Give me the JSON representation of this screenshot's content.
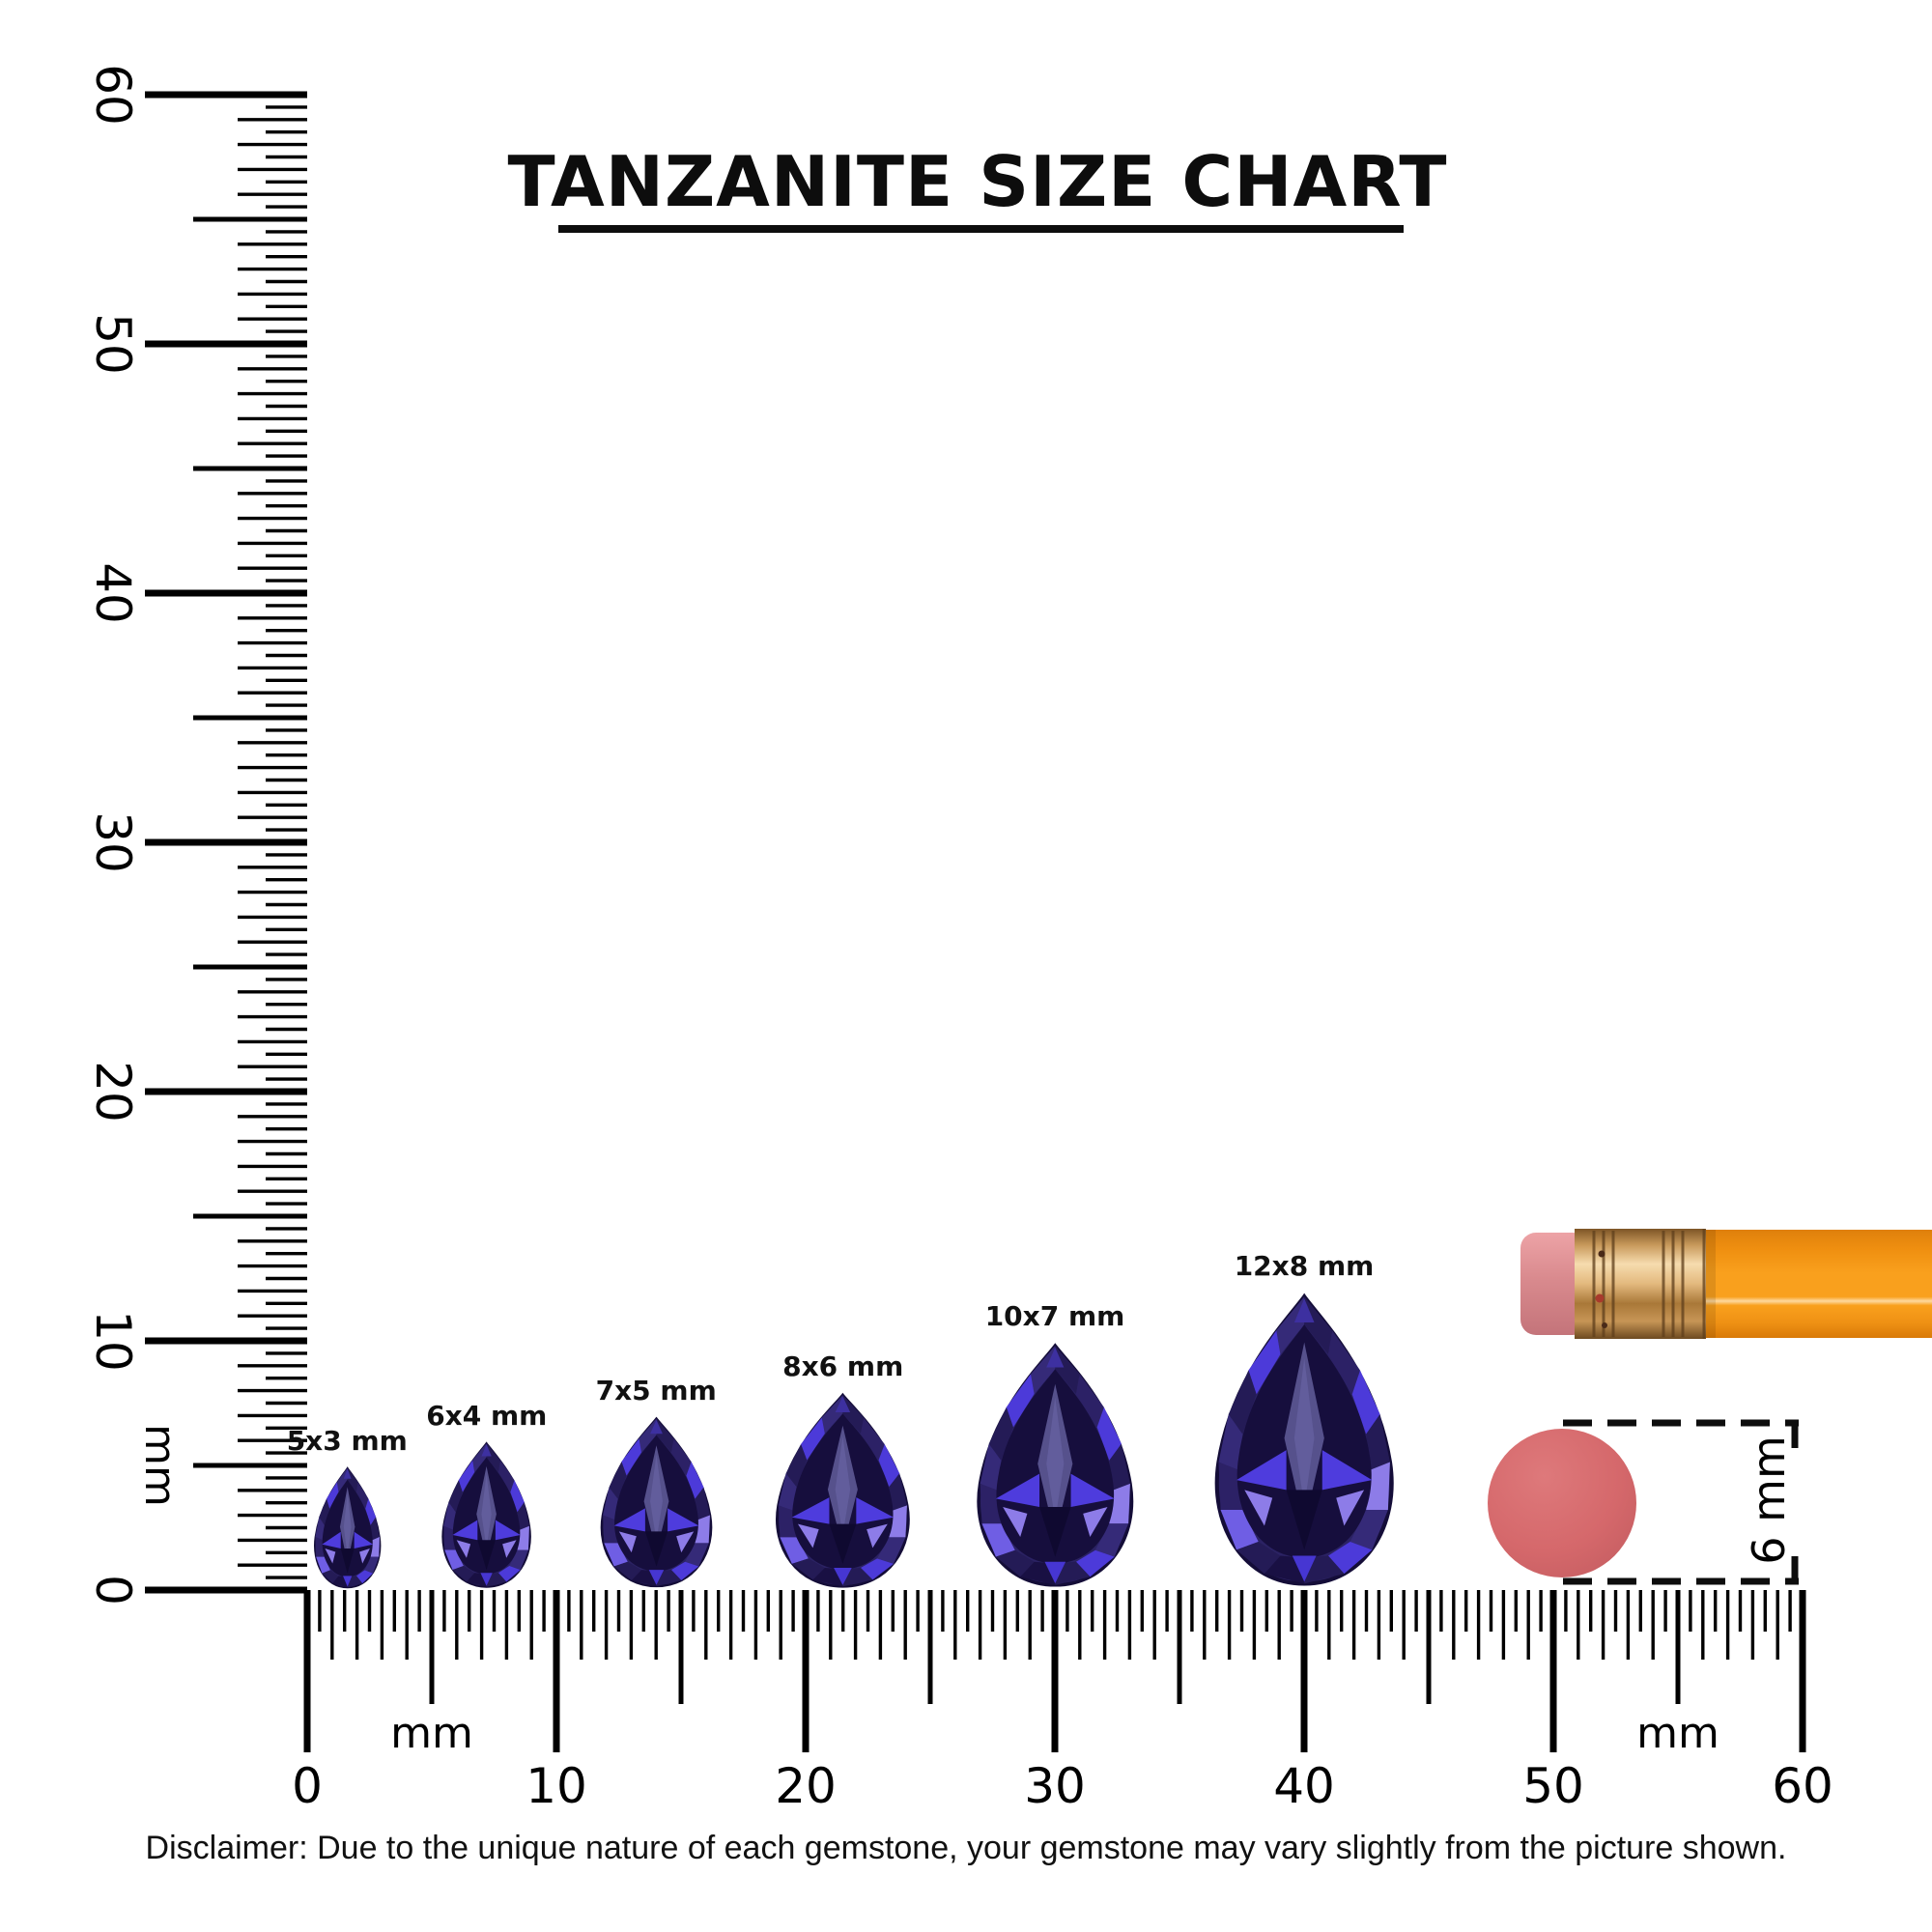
{
  "title": {
    "text": "TANZANITE SIZE CHART"
  },
  "rulers": {
    "unit_label": "mm",
    "vertical": {
      "min_mm": 0,
      "max_mm": 60,
      "major_labels": [
        "0",
        "10",
        "20",
        "30",
        "40",
        "50",
        "60"
      ]
    },
    "horizontal": {
      "min_mm": 0,
      "max_mm": 60,
      "major_labels": [
        "0",
        "10",
        "20",
        "30",
        "40",
        "50",
        "60"
      ]
    }
  },
  "gems": [
    {
      "label": "5x3 mm",
      "width_mm": 3,
      "height_mm": 5,
      "center_mm": 1.6
    },
    {
      "label": "6x4 mm",
      "width_mm": 4,
      "height_mm": 6,
      "center_mm": 7.2
    },
    {
      "label": "7x5 mm",
      "width_mm": 5,
      "height_mm": 7,
      "center_mm": 14.0
    },
    {
      "label": "8x6 mm",
      "width_mm": 6,
      "height_mm": 8,
      "center_mm": 21.5
    },
    {
      "label": "10x7 mm",
      "width_mm": 7,
      "height_mm": 10,
      "center_mm": 30.0
    },
    {
      "label": "12x8 mm",
      "width_mm": 8,
      "height_mm": 12,
      "center_mm": 40.0
    }
  ],
  "scale_reference": {
    "label": "6 mm",
    "diameter_mm": 6,
    "object": "pencil-eraser-disc"
  },
  "disclaimer": {
    "text": "Disclaimer: Due to the unique nature of each gemstone, your gemstone may vary slightly from the picture shown."
  },
  "colors": {
    "ink": "#000000",
    "gem_base": "#2b2263",
    "gem_dark": "#160e3d",
    "gem_deep": "#0f0930",
    "gem_mid": "#352a78",
    "gem_bright": "#4c3ad9",
    "gem_light": "#8d7ce8",
    "gem_table": "#56518c",
    "pencil_body": "#f8a01e",
    "pencil_body_dark": "#dd7d09",
    "ferrule": "#cf9454",
    "ferrule_light": "#f6dcae",
    "eraser_pink": "#d98a8e",
    "eraser_disc": "#d5686b"
  }
}
